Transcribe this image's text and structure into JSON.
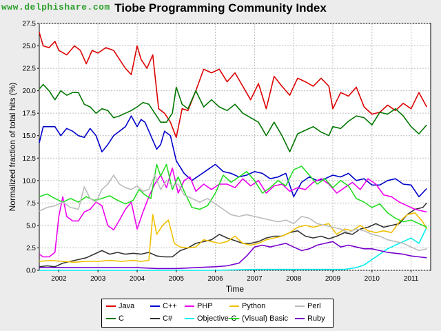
{
  "watermark": "www.delphishare.com",
  "chart_data": {
    "type": "line",
    "title": "Tiobe Programming Community Index",
    "xlabel": "Time",
    "ylabel": "Normalized fraction of total hits (%)",
    "xlim": [
      2001.5,
      2011.5
    ],
    "ylim": [
      0,
      27.5
    ],
    "grid": true,
    "legend_position": "bottom",
    "x_ticks": [
      "2002",
      "2003",
      "2004",
      "2005",
      "2006",
      "2007",
      "2008",
      "2009",
      "2010",
      "2011"
    ],
    "y_ticks": [
      "0.0",
      "2.5",
      "5.0",
      "7.5",
      "10.0",
      "12.5",
      "15.0",
      "17.5",
      "20.0",
      "22.5",
      "25.0",
      "27.5"
    ],
    "series": [
      {
        "name": "Java",
        "color": "#dd0000",
        "x": [
          2001.5,
          2001.6,
          2001.75,
          2001.9,
          2002.0,
          2002.2,
          2002.4,
          2002.55,
          2002.7,
          2002.85,
          2003.0,
          2003.2,
          2003.4,
          2003.55,
          2003.7,
          2003.85,
          2004.0,
          2004.1,
          2004.25,
          2004.4,
          2004.55,
          2004.7,
          2004.85,
          2005.0,
          2005.15,
          2005.3,
          2005.5,
          2005.7,
          2005.9,
          2006.1,
          2006.3,
          2006.5,
          2006.7,
          2006.9,
          2007.1,
          2007.3,
          2007.5,
          2007.7,
          2007.9,
          2008.1,
          2008.3,
          2008.5,
          2008.7,
          2008.9,
          2009.0,
          2009.2,
          2009.4,
          2009.6,
          2009.8,
          2010.0,
          2010.2,
          2010.4,
          2010.6,
          2010.8,
          2011.0,
          2011.2,
          2011.4
        ],
        "y": [
          26.5,
          25.0,
          24.8,
          25.5,
          24.5,
          24.0,
          25.0,
          24.5,
          23.0,
          24.5,
          24.2,
          24.8,
          24.5,
          23.5,
          22.5,
          21.8,
          25.0,
          23.5,
          22.5,
          24.0,
          18.0,
          17.5,
          16.5,
          14.8,
          18.0,
          17.8,
          20.0,
          22.4,
          22.0,
          22.4,
          21.0,
          22.0,
          20.5,
          19.0,
          20.8,
          18.0,
          21.6,
          20.5,
          19.5,
          21.4,
          21.0,
          20.5,
          21.4,
          20.5,
          18.0,
          19.8,
          19.4,
          20.4,
          18.2,
          17.4,
          17.6,
          18.4,
          17.8,
          18.6,
          18.0,
          19.8,
          18.2
        ]
      },
      {
        "name": "C",
        "color": "#007700",
        "x": [
          2001.5,
          2001.6,
          2001.75,
          2001.9,
          2002.05,
          2002.2,
          2002.35,
          2002.5,
          2002.65,
          2002.8,
          2002.95,
          2003.1,
          2003.25,
          2003.4,
          2003.55,
          2003.7,
          2003.85,
          2004.0,
          2004.15,
          2004.3,
          2004.45,
          2004.6,
          2004.75,
          2004.9,
          2005.0,
          2005.15,
          2005.3,
          2005.5,
          2005.7,
          2005.9,
          2006.1,
          2006.3,
          2006.5,
          2006.7,
          2006.9,
          2007.1,
          2007.3,
          2007.5,
          2007.7,
          2007.9,
          2008.1,
          2008.3,
          2008.5,
          2008.7,
          2008.9,
          2009.0,
          2009.2,
          2009.4,
          2009.6,
          2009.8,
          2010.0,
          2010.2,
          2010.4,
          2010.6,
          2010.8,
          2011.0,
          2011.2,
          2011.4
        ],
        "y": [
          20.2,
          20.7,
          20.0,
          19.0,
          20.0,
          19.5,
          19.8,
          19.8,
          18.5,
          18.2,
          17.5,
          18.0,
          17.8,
          17.0,
          17.2,
          17.5,
          17.8,
          18.2,
          18.7,
          18.5,
          17.5,
          16.5,
          16.5,
          17.5,
          20.4,
          18.5,
          18.0,
          20.0,
          18.2,
          19.0,
          18.2,
          17.8,
          18.5,
          17.5,
          17.0,
          16.5,
          15.0,
          16.5,
          15.0,
          13.2,
          15.2,
          15.6,
          16.0,
          15.4,
          15.0,
          16.0,
          15.8,
          16.6,
          17.2,
          17.0,
          16.2,
          17.6,
          17.4,
          18.0,
          17.2,
          16.0,
          15.2,
          16.2
        ]
      },
      {
        "name": "C++",
        "color": "#0000cc",
        "x": [
          2001.5,
          2001.6,
          2001.75,
          2001.9,
          2002.05,
          2002.2,
          2002.35,
          2002.5,
          2002.65,
          2002.8,
          2002.95,
          2003.1,
          2003.25,
          2003.4,
          2003.55,
          2003.7,
          2003.85,
          2004.0,
          2004.1,
          2004.2,
          2004.35,
          2004.5,
          2004.6,
          2004.7,
          2004.85,
          2005.0,
          2005.2,
          2005.4,
          2005.6,
          2005.8,
          2006.0,
          2006.2,
          2006.4,
          2006.6,
          2006.8,
          2007.0,
          2007.2,
          2007.4,
          2007.6,
          2007.8,
          2008.0,
          2008.2,
          2008.4,
          2008.6,
          2008.8,
          2009.0,
          2009.2,
          2009.4,
          2009.6,
          2009.8,
          2010.0,
          2010.2,
          2010.4,
          2010.6,
          2010.8,
          2011.0,
          2011.2,
          2011.4
        ],
        "y": [
          14.2,
          16.0,
          16.0,
          16.0,
          15.0,
          15.8,
          15.5,
          15.0,
          14.8,
          15.8,
          15.0,
          13.2,
          14.0,
          15.0,
          15.5,
          16.0,
          17.2,
          16.0,
          16.8,
          16.5,
          15.0,
          13.5,
          14.0,
          15.5,
          15.0,
          12.2,
          10.8,
          10.0,
          10.6,
          11.2,
          11.8,
          11.0,
          10.8,
          10.4,
          10.6,
          11.0,
          10.8,
          10.2,
          10.4,
          10.8,
          8.2,
          9.8,
          10.4,
          10.0,
          10.2,
          10.6,
          10.4,
          10.8,
          10.0,
          10.2,
          9.5,
          9.5,
          10.0,
          10.2,
          9.6,
          9.5,
          8.2,
          9.1
        ]
      },
      {
        "name": "C#",
        "color": "#333333",
        "x": [
          2001.5,
          2001.7,
          2001.9,
          2002.1,
          2002.3,
          2002.5,
          2002.7,
          2002.9,
          2003.1,
          2003.3,
          2003.5,
          2003.7,
          2003.9,
          2004.1,
          2004.3,
          2004.5,
          2004.7,
          2004.9,
          2005.1,
          2005.3,
          2005.5,
          2005.7,
          2005.9,
          2006.1,
          2006.3,
          2006.5,
          2006.7,
          2006.9,
          2007.1,
          2007.3,
          2007.5,
          2007.7,
          2007.9,
          2008.1,
          2008.3,
          2008.5,
          2008.7,
          2008.9,
          2009.1,
          2009.3,
          2009.5,
          2009.7,
          2009.9,
          2010.1,
          2010.3,
          2010.5,
          2010.7,
          2010.9,
          2011.1,
          2011.3,
          2011.4
        ],
        "y": [
          0.4,
          0.5,
          0.4,
          0.8,
          1.0,
          1.2,
          1.4,
          1.8,
          2.2,
          1.8,
          2.0,
          1.8,
          1.9,
          1.8,
          2.0,
          1.6,
          1.5,
          1.5,
          2.2,
          2.5,
          3.0,
          3.2,
          3.4,
          4.0,
          3.6,
          3.3,
          3.0,
          3.0,
          3.2,
          3.6,
          3.8,
          3.8,
          4.2,
          4.4,
          3.8,
          3.6,
          3.8,
          3.5,
          3.8,
          4.2,
          4.0,
          4.6,
          4.8,
          5.2,
          4.8,
          5.0,
          5.2,
          6.2,
          6.8,
          7.0,
          7.5
        ]
      },
      {
        "name": "PHP",
        "color": "#ee00ee",
        "x": [
          2001.5,
          2001.6,
          2001.75,
          2001.9,
          2002.0,
          2002.1,
          2002.2,
          2002.35,
          2002.5,
          2002.65,
          2002.8,
          2002.95,
          2003.1,
          2003.25,
          2003.4,
          2003.55,
          2003.7,
          2003.85,
          2004.0,
          2004.15,
          2004.3,
          2004.45,
          2004.6,
          2004.75,
          2004.9,
          2005.05,
          2005.2,
          2005.35,
          2005.5,
          2005.7,
          2005.9,
          2006.1,
          2006.3,
          2006.5,
          2006.7,
          2006.9,
          2007.1,
          2007.3,
          2007.5,
          2007.7,
          2007.9,
          2008.1,
          2008.3,
          2008.5,
          2008.7,
          2008.9,
          2009.1,
          2009.3,
          2009.5,
          2009.7,
          2009.9,
          2010.1,
          2010.3,
          2010.5,
          2010.7,
          2010.9,
          2011.1,
          2011.3,
          2011.4
        ],
        "y": [
          1.8,
          1.5,
          1.5,
          2.0,
          6.0,
          8.2,
          6.0,
          5.5,
          5.5,
          6.5,
          6.8,
          7.6,
          7.2,
          5.0,
          4.5,
          5.6,
          6.8,
          7.6,
          4.6,
          6.5,
          8.2,
          9.6,
          10.6,
          9.2,
          11.4,
          8.6,
          10.0,
          10.4,
          8.8,
          9.6,
          9.0,
          9.6,
          9.6,
          9.2,
          10.2,
          9.4,
          10.0,
          8.6,
          9.4,
          9.6,
          8.8,
          9.2,
          9.0,
          9.8,
          10.2,
          9.6,
          8.6,
          9.2,
          9.8,
          9.0,
          10.2,
          9.6,
          8.4,
          8.2,
          7.6,
          7.2,
          6.8,
          6.6,
          6.5
        ]
      },
      {
        "name": "Objective-C",
        "color": "#00eeee",
        "x": [
          2001.5,
          2002.0,
          2003.0,
          2004.0,
          2005.0,
          2006.0,
          2007.0,
          2008.0,
          2008.5,
          2009.0,
          2009.3,
          2009.6,
          2009.8,
          2010.0,
          2010.2,
          2010.4,
          2010.6,
          2010.8,
          2011.0,
          2011.2,
          2011.4
        ],
        "y": [
          0.0,
          0.0,
          0.0,
          0.0,
          0.0,
          0.0,
          0.1,
          0.1,
          0.1,
          0.1,
          0.1,
          0.3,
          0.6,
          1.2,
          1.8,
          2.4,
          2.8,
          3.2,
          3.6,
          3.0,
          4.8
        ]
      },
      {
        "name": "Python",
        "color": "#f0c000",
        "x": [
          2001.5,
          2001.8,
          2002.1,
          2002.4,
          2002.7,
          2003.0,
          2003.3,
          2003.6,
          2003.9,
          2004.1,
          2004.3,
          2004.4,
          2004.5,
          2004.65,
          2004.8,
          2004.95,
          2005.1,
          2005.3,
          2005.5,
          2005.7,
          2005.9,
          2006.1,
          2006.3,
          2006.5,
          2006.7,
          2006.9,
          2007.1,
          2007.3,
          2007.5,
          2007.7,
          2007.9,
          2008.1,
          2008.3,
          2008.5,
          2008.7,
          2008.9,
          2009.1,
          2009.3,
          2009.5,
          2009.7,
          2009.9,
          2010.1,
          2010.3,
          2010.5,
          2010.7,
          2010.9,
          2011.1,
          2011.3,
          2011.4
        ],
        "y": [
          1.0,
          1.1,
          1.0,
          0.9,
          1.0,
          1.0,
          1.1,
          1.0,
          1.1,
          1.0,
          1.1,
          6.2,
          4.0,
          5.0,
          5.6,
          3.0,
          2.6,
          2.5,
          2.6,
          3.4,
          3.2,
          3.0,
          3.2,
          3.8,
          3.0,
          2.8,
          3.0,
          3.4,
          3.6,
          3.8,
          4.2,
          4.8,
          5.0,
          4.8,
          5.0,
          5.2,
          4.0,
          4.6,
          4.4,
          5.0,
          4.4,
          4.2,
          4.4,
          4.2,
          5.4,
          6.2,
          6.4,
          5.4,
          4.6
        ]
      },
      {
        "name": "(Visual) Basic",
        "color": "#22dd22",
        "x": [
          2001.5,
          2001.7,
          2001.9,
          2002.1,
          2002.3,
          2002.5,
          2002.7,
          2002.9,
          2003.1,
          2003.3,
          2003.5,
          2003.7,
          2003.9,
          2004.05,
          2004.2,
          2004.35,
          2004.5,
          2004.6,
          2004.75,
          2004.9,
          2005.05,
          2005.2,
          2005.4,
          2005.6,
          2005.8,
          2006.0,
          2006.2,
          2006.4,
          2006.6,
          2006.8,
          2007.0,
          2007.2,
          2007.4,
          2007.6,
          2007.8,
          2008.0,
          2008.2,
          2008.4,
          2008.6,
          2008.8,
          2009.0,
          2009.2,
          2009.4,
          2009.6,
          2009.8,
          2010.0,
          2010.2,
          2010.4,
          2010.6,
          2010.8,
          2011.0,
          2011.2,
          2011.4
        ],
        "y": [
          8.2,
          8.5,
          8.0,
          7.6,
          8.0,
          7.6,
          8.2,
          7.8,
          8.0,
          8.3,
          7.8,
          7.4,
          7.8,
          9.0,
          8.4,
          8.0,
          11.8,
          10.5,
          11.8,
          9.0,
          10.4,
          8.8,
          7.0,
          6.8,
          7.2,
          8.6,
          10.6,
          9.8,
          10.4,
          11.0,
          10.0,
          8.6,
          9.2,
          10.0,
          9.4,
          11.2,
          11.6,
          10.6,
          9.6,
          10.2,
          9.2,
          10.0,
          9.4,
          8.0,
          7.6,
          7.0,
          7.4,
          6.4,
          5.8,
          5.4,
          5.6,
          5.2,
          4.8
        ]
      },
      {
        "name": "Perl",
        "color": "#bbbbbb",
        "x": [
          2001.5,
          2001.7,
          2001.9,
          2002.1,
          2002.3,
          2002.5,
          2002.65,
          2002.8,
          2002.95,
          2003.1,
          2003.25,
          2003.4,
          2003.55,
          2003.7,
          2003.85,
          2004.0,
          2004.15,
          2004.3,
          2004.45,
          2004.6,
          2004.75,
          2004.9,
          2005.05,
          2005.2,
          2005.4,
          2005.6,
          2005.8,
          2006.0,
          2006.2,
          2006.4,
          2006.6,
          2006.8,
          2007.0,
          2007.2,
          2007.4,
          2007.6,
          2007.8,
          2008.0,
          2008.2,
          2008.4,
          2008.6,
          2008.8,
          2009.0,
          2009.2,
          2009.4,
          2009.6,
          2009.8,
          2010.0,
          2010.2,
          2010.4,
          2010.6,
          2010.8,
          2011.0,
          2011.2,
          2011.4
        ],
        "y": [
          6.6,
          7.0,
          7.2,
          7.6,
          7.0,
          6.8,
          9.3,
          8.0,
          7.6,
          9.0,
          9.6,
          10.6,
          9.6,
          9.2,
          9.0,
          9.4,
          8.8,
          9.0,
          10.6,
          9.0,
          10.0,
          9.4,
          9.6,
          8.4,
          8.0,
          7.6,
          8.0,
          7.4,
          6.8,
          6.2,
          6.0,
          6.2,
          6.0,
          5.8,
          5.6,
          5.4,
          5.6,
          5.2,
          6.0,
          5.8,
          5.2,
          5.0,
          4.8,
          4.6,
          4.2,
          4.6,
          4.4,
          4.0,
          3.8,
          3.4,
          3.2,
          3.0,
          2.6,
          2.2,
          2.4
        ]
      },
      {
        "name": "Ruby",
        "color": "#7700cc",
        "x": [
          2001.5,
          2002.0,
          2002.5,
          2003.0,
          2003.5,
          2004.0,
          2004.5,
          2005.0,
          2005.5,
          2006.0,
          2006.3,
          2006.6,
          2006.8,
          2007.0,
          2007.2,
          2007.4,
          2007.6,
          2007.8,
          2008.0,
          2008.2,
          2008.4,
          2008.6,
          2008.8,
          2009.0,
          2009.2,
          2009.4,
          2009.6,
          2009.8,
          2010.0,
          2010.2,
          2010.4,
          2010.6,
          2010.8,
          2011.0,
          2011.2,
          2011.4
        ],
        "y": [
          0.3,
          0.3,
          0.3,
          0.3,
          0.3,
          0.3,
          0.2,
          0.2,
          0.3,
          0.4,
          0.5,
          0.8,
          1.6,
          2.6,
          2.8,
          2.6,
          2.8,
          3.0,
          2.6,
          2.2,
          2.4,
          2.8,
          3.0,
          3.2,
          2.6,
          2.8,
          2.6,
          2.4,
          2.4,
          2.2,
          2.0,
          1.9,
          1.8,
          1.6,
          1.5,
          1.4
        ]
      }
    ]
  }
}
